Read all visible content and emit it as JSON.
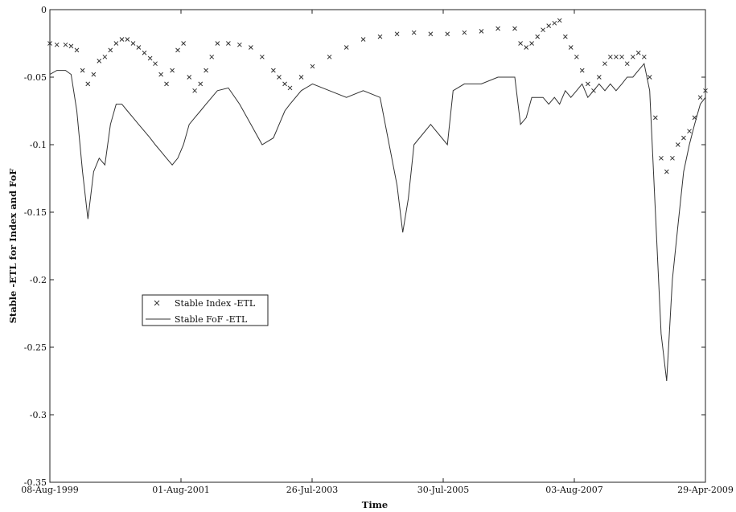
{
  "chart_data": {
    "type": "line",
    "title": "",
    "xlabel": "Time",
    "ylabel": "Stable -ETL for Index and FoF",
    "x_ticks": [
      "08-Aug-1999",
      "01-Aug-2001",
      "26-Jul-2003",
      "30-Jul-2005",
      "03-Aug-2007",
      "29-Apr-2009"
    ],
    "y_ticks": [
      "0",
      "-0.05",
      "-0.1",
      "-0.15",
      "-0.2",
      "-0.25",
      "-0.3",
      "-0.35"
    ],
    "xlim": [
      "1999-08-08",
      "2009-04-29"
    ],
    "ylim": [
      -0.35,
      0
    ],
    "grid": false,
    "legend_position": "center-left",
    "series": [
      {
        "name": "Stable Index -ETL",
        "style": "x-markers",
        "color": "#333333",
        "points": [
          [
            "1999-08-08",
            -0.025
          ],
          [
            "1999-09-15",
            -0.026
          ],
          [
            "1999-11-01",
            -0.026
          ],
          [
            "1999-12-01",
            -0.027
          ],
          [
            "2000-01-01",
            -0.03
          ],
          [
            "2000-02-01",
            -0.045
          ],
          [
            "2000-03-01",
            -0.055
          ],
          [
            "2000-04-01",
            -0.048
          ],
          [
            "2000-05-01",
            -0.038
          ],
          [
            "2000-06-01",
            -0.035
          ],
          [
            "2000-07-01",
            -0.03
          ],
          [
            "2000-08-01",
            -0.025
          ],
          [
            "2000-09-01",
            -0.022
          ],
          [
            "2000-10-01",
            -0.022
          ],
          [
            "2000-11-01",
            -0.025
          ],
          [
            "2000-12-01",
            -0.028
          ],
          [
            "2001-01-01",
            -0.032
          ],
          [
            "2001-02-01",
            -0.036
          ],
          [
            "2001-03-01",
            -0.04
          ],
          [
            "2001-04-01",
            -0.048
          ],
          [
            "2001-05-01",
            -0.055
          ],
          [
            "2001-06-01",
            -0.045
          ],
          [
            "2001-07-01",
            -0.03
          ],
          [
            "2001-08-01",
            -0.025
          ],
          [
            "2001-09-01",
            -0.05
          ],
          [
            "2001-10-01",
            -0.06
          ],
          [
            "2001-11-01",
            -0.055
          ],
          [
            "2001-12-01",
            -0.045
          ],
          [
            "2002-01-01",
            -0.035
          ],
          [
            "2002-02-01",
            -0.025
          ],
          [
            "2002-04-01",
            -0.025
          ],
          [
            "2002-06-01",
            -0.026
          ],
          [
            "2002-08-01",
            -0.028
          ],
          [
            "2002-10-01",
            -0.035
          ],
          [
            "2002-12-01",
            -0.045
          ],
          [
            "2003-01-01",
            -0.05
          ],
          [
            "2003-02-01",
            -0.055
          ],
          [
            "2003-03-01",
            -0.058
          ],
          [
            "2003-05-01",
            -0.05
          ],
          [
            "2003-07-01",
            -0.042
          ],
          [
            "2003-10-01",
            -0.035
          ],
          [
            "2004-01-01",
            -0.028
          ],
          [
            "2004-04-01",
            -0.022
          ],
          [
            "2004-07-01",
            -0.02
          ],
          [
            "2004-10-01",
            -0.018
          ],
          [
            "2005-01-01",
            -0.017
          ],
          [
            "2005-04-01",
            -0.018
          ],
          [
            "2005-07-01",
            -0.018
          ],
          [
            "2005-10-01",
            -0.017
          ],
          [
            "2006-01-01",
            -0.016
          ],
          [
            "2006-04-01",
            -0.014
          ],
          [
            "2006-07-01",
            -0.014
          ],
          [
            "2006-08-01",
            -0.025
          ],
          [
            "2006-09-01",
            -0.028
          ],
          [
            "2006-10-01",
            -0.025
          ],
          [
            "2006-11-01",
            -0.02
          ],
          [
            "2006-12-01",
            -0.015
          ],
          [
            "2007-01-01",
            -0.012
          ],
          [
            "2007-02-01",
            -0.01
          ],
          [
            "2007-03-01",
            -0.008
          ],
          [
            "2007-04-01",
            -0.02
          ],
          [
            "2007-05-01",
            -0.028
          ],
          [
            "2007-06-01",
            -0.035
          ],
          [
            "2007-07-01",
            -0.045
          ],
          [
            "2007-08-01",
            -0.055
          ],
          [
            "2007-09-01",
            -0.06
          ],
          [
            "2007-10-01",
            -0.05
          ],
          [
            "2007-11-01",
            -0.04
          ],
          [
            "2007-12-01",
            -0.035
          ],
          [
            "2008-01-01",
            -0.035
          ],
          [
            "2008-02-01",
            -0.035
          ],
          [
            "2008-03-01",
            -0.04
          ],
          [
            "2008-04-01",
            -0.035
          ],
          [
            "2008-05-01",
            -0.032
          ],
          [
            "2008-06-01",
            -0.035
          ],
          [
            "2008-07-01",
            -0.05
          ],
          [
            "2008-08-01",
            -0.08
          ],
          [
            "2008-09-01",
            -0.11
          ],
          [
            "2008-10-01",
            -0.12
          ],
          [
            "2008-11-01",
            -0.11
          ],
          [
            "2008-12-01",
            -0.1
          ],
          [
            "2009-01-01",
            -0.095
          ],
          [
            "2009-02-01",
            -0.09
          ],
          [
            "2009-03-01",
            -0.08
          ],
          [
            "2009-04-01",
            -0.065
          ],
          [
            "2009-04-29",
            -0.06
          ]
        ]
      },
      {
        "name": "Stable FoF -ETL",
        "style": "line",
        "color": "#333333",
        "points": [
          [
            "1999-08-08",
            -0.048
          ],
          [
            "1999-09-15",
            -0.045
          ],
          [
            "1999-11-01",
            -0.045
          ],
          [
            "1999-12-01",
            -0.048
          ],
          [
            "2000-01-01",
            -0.075
          ],
          [
            "2000-02-01",
            -0.12
          ],
          [
            "2000-03-01",
            -0.155
          ],
          [
            "2000-04-01",
            -0.12
          ],
          [
            "2000-05-01",
            -0.11
          ],
          [
            "2000-06-01",
            -0.115
          ],
          [
            "2000-07-01",
            -0.085
          ],
          [
            "2000-08-01",
            -0.07
          ],
          [
            "2000-09-01",
            -0.07
          ],
          [
            "2000-10-01",
            -0.075
          ],
          [
            "2000-11-01",
            -0.08
          ],
          [
            "2000-12-01",
            -0.085
          ],
          [
            "2001-01-01",
            -0.09
          ],
          [
            "2001-02-01",
            -0.095
          ],
          [
            "2001-03-01",
            -0.1
          ],
          [
            "2001-04-01",
            -0.105
          ],
          [
            "2001-05-01",
            -0.11
          ],
          [
            "2001-06-01",
            -0.115
          ],
          [
            "2001-07-01",
            -0.11
          ],
          [
            "2001-08-01",
            -0.1
          ],
          [
            "2001-09-01",
            -0.085
          ],
          [
            "2001-10-01",
            -0.08
          ],
          [
            "2001-11-01",
            -0.075
          ],
          [
            "2001-12-01",
            -0.07
          ],
          [
            "2002-01-01",
            -0.065
          ],
          [
            "2002-02-01",
            -0.06
          ],
          [
            "2002-04-01",
            -0.058
          ],
          [
            "2002-06-01",
            -0.07
          ],
          [
            "2002-08-01",
            -0.085
          ],
          [
            "2002-10-01",
            -0.1
          ],
          [
            "2002-12-01",
            -0.095
          ],
          [
            "2003-01-01",
            -0.085
          ],
          [
            "2003-02-01",
            -0.075
          ],
          [
            "2003-03-01",
            -0.07
          ],
          [
            "2003-05-01",
            -0.06
          ],
          [
            "2003-07-01",
            -0.055
          ],
          [
            "2003-10-01",
            -0.06
          ],
          [
            "2004-01-01",
            -0.065
          ],
          [
            "2004-04-01",
            -0.06
          ],
          [
            "2004-07-01",
            -0.065
          ],
          [
            "2004-10-01",
            -0.13
          ],
          [
            "2004-11-01",
            -0.165
          ],
          [
            "2004-12-01",
            -0.14
          ],
          [
            "2005-01-01",
            -0.1
          ],
          [
            "2005-04-01",
            -0.085
          ],
          [
            "2005-07-01",
            -0.1
          ],
          [
            "2005-08-01",
            -0.06
          ],
          [
            "2005-10-01",
            -0.055
          ],
          [
            "2006-01-01",
            -0.055
          ],
          [
            "2006-04-01",
            -0.05
          ],
          [
            "2006-07-01",
            -0.05
          ],
          [
            "2006-08-01",
            -0.085
          ],
          [
            "2006-09-01",
            -0.08
          ],
          [
            "2006-10-01",
            -0.065
          ],
          [
            "2006-11-01",
            -0.065
          ],
          [
            "2006-12-01",
            -0.065
          ],
          [
            "2007-01-01",
            -0.07
          ],
          [
            "2007-02-01",
            -0.065
          ],
          [
            "2007-03-01",
            -0.07
          ],
          [
            "2007-04-01",
            -0.06
          ],
          [
            "2007-05-01",
            -0.065
          ],
          [
            "2007-06-01",
            -0.06
          ],
          [
            "2007-07-01",
            -0.055
          ],
          [
            "2007-08-01",
            -0.065
          ],
          [
            "2007-09-01",
            -0.06
          ],
          [
            "2007-10-01",
            -0.055
          ],
          [
            "2007-11-01",
            -0.06
          ],
          [
            "2007-12-01",
            -0.055
          ],
          [
            "2008-01-01",
            -0.06
          ],
          [
            "2008-02-01",
            -0.055
          ],
          [
            "2008-03-01",
            -0.05
          ],
          [
            "2008-04-01",
            -0.05
          ],
          [
            "2008-05-01",
            -0.045
          ],
          [
            "2008-06-01",
            -0.04
          ],
          [
            "2008-07-01",
            -0.06
          ],
          [
            "2008-08-01",
            -0.15
          ],
          [
            "2008-09-01",
            -0.24
          ],
          [
            "2008-10-01",
            -0.275
          ],
          [
            "2008-11-01",
            -0.2
          ],
          [
            "2008-12-01",
            -0.16
          ],
          [
            "2009-01-01",
            -0.12
          ],
          [
            "2009-02-01",
            -0.1
          ],
          [
            "2009-03-01",
            -0.085
          ],
          [
            "2009-04-01",
            -0.07
          ],
          [
            "2009-04-29",
            -0.065
          ]
        ]
      }
    ]
  }
}
